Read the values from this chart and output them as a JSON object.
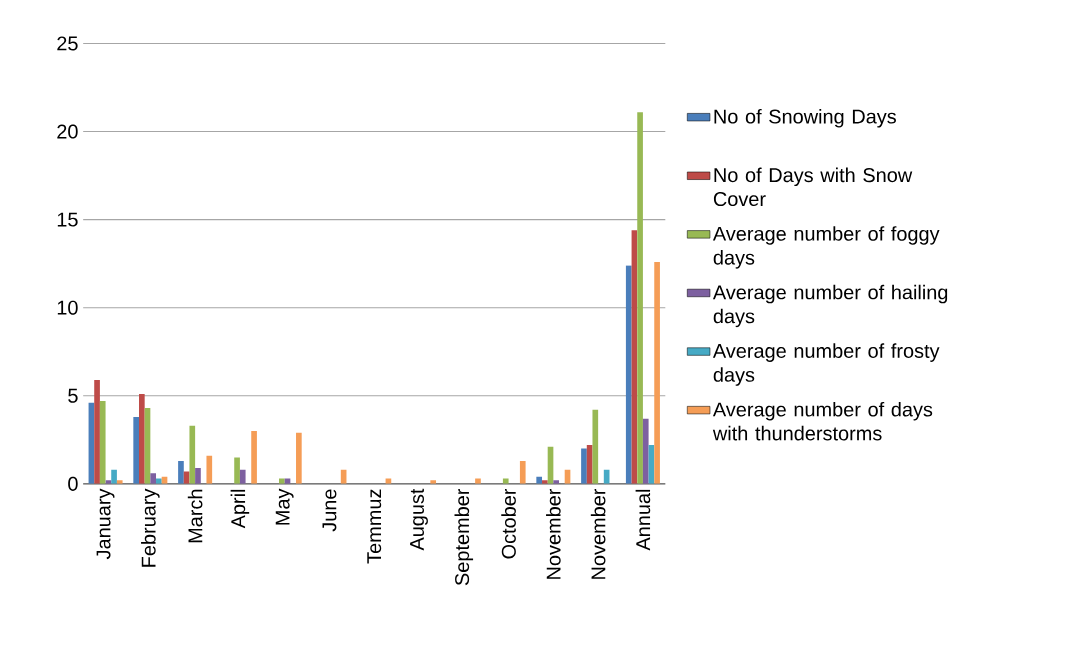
{
  "chart_data": {
    "type": "bar",
    "categories": [
      "January",
      "February",
      "March",
      "April",
      "May",
      "June",
      "Temmuz",
      "August",
      "September",
      "October",
      "November",
      "November",
      "Annual"
    ],
    "series": [
      {
        "name": "No of Snowing Days",
        "color": "#4a7ebb",
        "values": [
          4.6,
          3.8,
          1.3,
          0,
          0,
          0,
          0,
          0,
          0,
          0,
          0.4,
          2.0,
          12.4
        ]
      },
      {
        "name": "No of Days with Snow Cover",
        "color": "#be4b48",
        "values": [
          5.9,
          5.1,
          0.7,
          0,
          0,
          0,
          0,
          0,
          0,
          0,
          0.2,
          2.2,
          14.4
        ]
      },
      {
        "name": "Average number of foggy days",
        "color": "#98b954",
        "values": [
          4.7,
          4.3,
          3.3,
          1.5,
          0.3,
          0,
          0,
          0,
          0,
          0.3,
          2.1,
          4.2,
          21.1
        ]
      },
      {
        "name": "Average number of hailing days",
        "color": "#7d60a0",
        "values": [
          0.2,
          0.6,
          0.9,
          0.8,
          0.3,
          0,
          0,
          0,
          0,
          0,
          0.2,
          0,
          3.7
        ]
      },
      {
        "name": "Average number of frosty days",
        "color": "#46aac5",
        "values": [
          0.8,
          0.3,
          0,
          0,
          0,
          0,
          0,
          0,
          0,
          0,
          0,
          0.8,
          2.2
        ]
      },
      {
        "name": "Average number of days with thunderstorms",
        "color": "#f59d56",
        "values": [
          0.2,
          0.4,
          1.6,
          3.0,
          2.9,
          0.8,
          0.3,
          0.2,
          0.3,
          1.3,
          0.8,
          0,
          12.6
        ]
      }
    ],
    "ylim": [
      0,
      25
    ],
    "yticks": [
      0,
      5,
      10,
      15,
      20,
      25
    ],
    "grid": "y",
    "legend": "right"
  }
}
